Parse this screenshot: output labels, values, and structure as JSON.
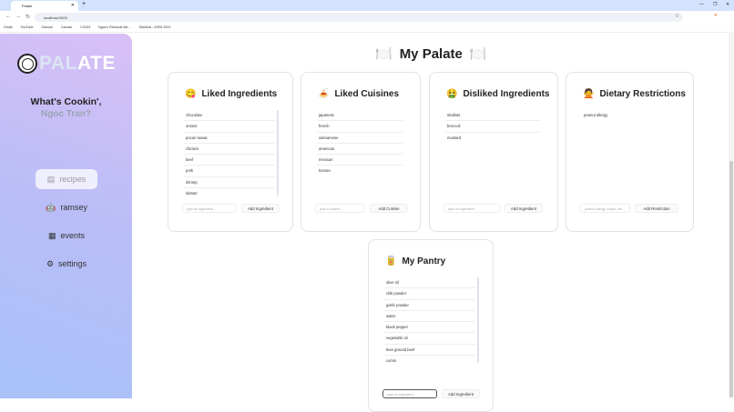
{
  "browser": {
    "tab_title": "Palate",
    "url": "localhost:3000",
    "bookmarks": [
      "Gmail",
      "YouTube",
      "Outlook",
      "Canvas",
      "CS103",
      "Ngoc's Personal We...",
      "Stanford - iGEM 2023"
    ]
  },
  "sidebar": {
    "logo_text_light": "PAL",
    "logo_text_dark": "ATE",
    "greeting": "What's Cookin',",
    "user_name": "Ngoc Tran?",
    "items": [
      {
        "label": "recipes",
        "icon": "book-icon",
        "active": true
      },
      {
        "label": "ramsey",
        "icon": "robot-icon"
      },
      {
        "label": "events",
        "icon": "calendar-icon"
      },
      {
        "label": "settings",
        "icon": "gear-icon"
      }
    ]
  },
  "main": {
    "title": "My Palate",
    "cards": [
      {
        "title": "Liked Ingredients",
        "emoji": "😋",
        "items": [
          "chocolate",
          "onions",
          "pocari sweat",
          "chicken",
          "beef",
          "pork",
          "shrimp",
          "lobster"
        ],
        "placeholder": "type an ingredient...",
        "button": "Add Ingredient"
      },
      {
        "title": "Liked Cuisines",
        "emoji": "🍝",
        "items": [
          "japanese",
          "french",
          "vietnamese",
          "american",
          "mexican",
          "korean"
        ],
        "placeholder": "type a cuisine...",
        "button": "Add Cuisine"
      },
      {
        "title": "Disliked Ingredients",
        "emoji": "🤮",
        "items": [
          "shallots",
          "broccoli",
          "mustard"
        ],
        "placeholder": "type an ingredient...",
        "button": "Add Ingredient"
      },
      {
        "title": "Dietary Restrictions",
        "emoji": "🙅",
        "items": [
          "peanut allergy"
        ],
        "placeholder": "peanut allergy, vegan, etc...",
        "button": "Add Restriction"
      }
    ],
    "pantry": {
      "title": "My Pantry",
      "emoji": "🥫",
      "items": [
        "olive oil",
        "chili powder",
        "garlic powder",
        "water",
        "black pepper",
        "vegetable oil",
        "lean ground beef",
        "cumin"
      ],
      "placeholder": "type an ingredient...",
      "button": "Add Ingredient"
    }
  }
}
